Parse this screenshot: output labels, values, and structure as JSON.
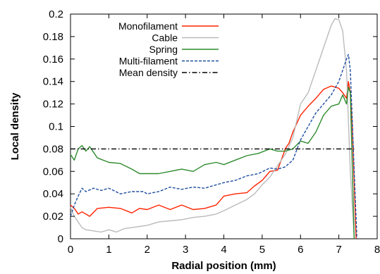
{
  "chart_data": {
    "type": "line",
    "title": "",
    "xlabel": "Radial position (mm)",
    "ylabel": "Local density",
    "xlim": [
      0,
      8
    ],
    "ylim": [
      0,
      0.2
    ],
    "xticks": [
      "0",
      "1",
      "2",
      "3",
      "4",
      "5",
      "6",
      "7",
      "8"
    ],
    "yticks": [
      "0",
      "0.02",
      "0.04",
      "0.06",
      "0.08",
      "0.1",
      "0.12",
      "0.14",
      "0.16",
      "0.18",
      "0.2"
    ],
    "legend_position": "top-left",
    "grid": false,
    "series": [
      {
        "name": "Monofilament",
        "color": "#ff2200",
        "dash": "solid",
        "x": [
          0,
          0.1,
          0.2,
          0.3,
          0.5,
          0.7,
          1.0,
          1.3,
          1.6,
          1.8,
          2.0,
          2.3,
          2.6,
          2.9,
          3.2,
          3.5,
          3.8,
          4.0,
          4.3,
          4.6,
          4.8,
          5.0,
          5.2,
          5.4,
          5.55,
          5.6,
          5.7,
          5.8,
          6.0,
          6.2,
          6.4,
          6.6,
          6.8,
          7.0,
          7.1,
          7.2,
          7.25,
          7.3,
          7.35,
          7.45
        ],
        "y": [
          0.03,
          0.027,
          0.022,
          0.024,
          0.02,
          0.027,
          0.028,
          0.027,
          0.023,
          0.027,
          0.026,
          0.03,
          0.026,
          0.03,
          0.026,
          0.027,
          0.03,
          0.038,
          0.04,
          0.041,
          0.047,
          0.052,
          0.06,
          0.061,
          0.075,
          0.08,
          0.085,
          0.095,
          0.11,
          0.118,
          0.125,
          0.133,
          0.136,
          0.134,
          0.13,
          0.125,
          0.14,
          0.13,
          0.1,
          0
        ]
      },
      {
        "name": "Cable",
        "color": "#bbbbbb",
        "dash": "solid",
        "x": [
          0,
          0.1,
          0.2,
          0.3,
          0.4,
          0.6,
          0.8,
          1.0,
          1.2,
          1.4,
          1.6,
          1.8,
          2.0,
          2.3,
          2.6,
          2.9,
          3.2,
          3.5,
          3.8,
          4.0,
          4.3,
          4.6,
          4.8,
          5.0,
          5.2,
          5.4,
          5.6,
          5.8,
          6.0,
          6.2,
          6.4,
          6.6,
          6.8,
          6.9,
          7.0,
          7.1,
          7.2,
          7.3,
          7.4
        ],
        "y": [
          0.028,
          0.02,
          0.015,
          0.01,
          0.008,
          0.007,
          0.006,
          0.008,
          0.006,
          0.009,
          0.01,
          0.011,
          0.012,
          0.015,
          0.016,
          0.017,
          0.019,
          0.02,
          0.022,
          0.025,
          0.03,
          0.035,
          0.04,
          0.048,
          0.055,
          0.065,
          0.075,
          0.09,
          0.12,
          0.13,
          0.15,
          0.17,
          0.19,
          0.196,
          0.195,
          0.185,
          0.15,
          0.06,
          0
        ]
      },
      {
        "name": "Spring",
        "color": "#2e8b2e",
        "dash": "solid",
        "x": [
          0,
          0.1,
          0.2,
          0.3,
          0.4,
          0.5,
          0.7,
          1.0,
          1.3,
          1.6,
          1.8,
          2.0,
          2.3,
          2.6,
          2.9,
          3.2,
          3.5,
          3.8,
          4.0,
          4.3,
          4.6,
          4.9,
          5.2,
          5.4,
          5.6,
          5.8,
          6.0,
          6.2,
          6.4,
          6.6,
          6.8,
          7.0,
          7.1,
          7.2,
          7.25,
          7.3,
          7.4
        ],
        "y": [
          0.075,
          0.07,
          0.08,
          0.083,
          0.078,
          0.082,
          0.072,
          0.068,
          0.067,
          0.062,
          0.058,
          0.058,
          0.058,
          0.06,
          0.062,
          0.06,
          0.066,
          0.068,
          0.066,
          0.07,
          0.074,
          0.076,
          0.08,
          0.078,
          0.078,
          0.08,
          0.087,
          0.085,
          0.095,
          0.11,
          0.118,
          0.12,
          0.128,
          0.12,
          0.135,
          0.13,
          0
        ]
      },
      {
        "name": "Multi-filament",
        "color": "#1f4fa0",
        "dash": "dashed",
        "x": [
          0,
          0.1,
          0.2,
          0.3,
          0.4,
          0.6,
          0.8,
          1.0,
          1.3,
          1.6,
          1.9,
          2.0,
          2.3,
          2.6,
          2.9,
          3.2,
          3.5,
          3.8,
          4.0,
          4.3,
          4.6,
          4.9,
          5.2,
          5.4,
          5.6,
          5.8,
          6.0,
          6.2,
          6.4,
          6.6,
          6.8,
          7.0,
          7.1,
          7.2,
          7.25,
          7.3,
          7.4,
          7.47
        ],
        "y": [
          0.02,
          0.03,
          0.038,
          0.045,
          0.042,
          0.045,
          0.043,
          0.045,
          0.04,
          0.042,
          0.042,
          0.04,
          0.042,
          0.046,
          0.044,
          0.046,
          0.045,
          0.048,
          0.05,
          0.052,
          0.056,
          0.058,
          0.063,
          0.062,
          0.064,
          0.07,
          0.088,
          0.1,
          0.112,
          0.12,
          0.128,
          0.14,
          0.15,
          0.16,
          0.164,
          0.15,
          0.06,
          0
        ]
      },
      {
        "name": "Mean density",
        "color": "#000000",
        "dash": "dashdot",
        "x": [
          0,
          7.4
        ],
        "y": [
          0.08,
          0.08
        ]
      }
    ]
  }
}
